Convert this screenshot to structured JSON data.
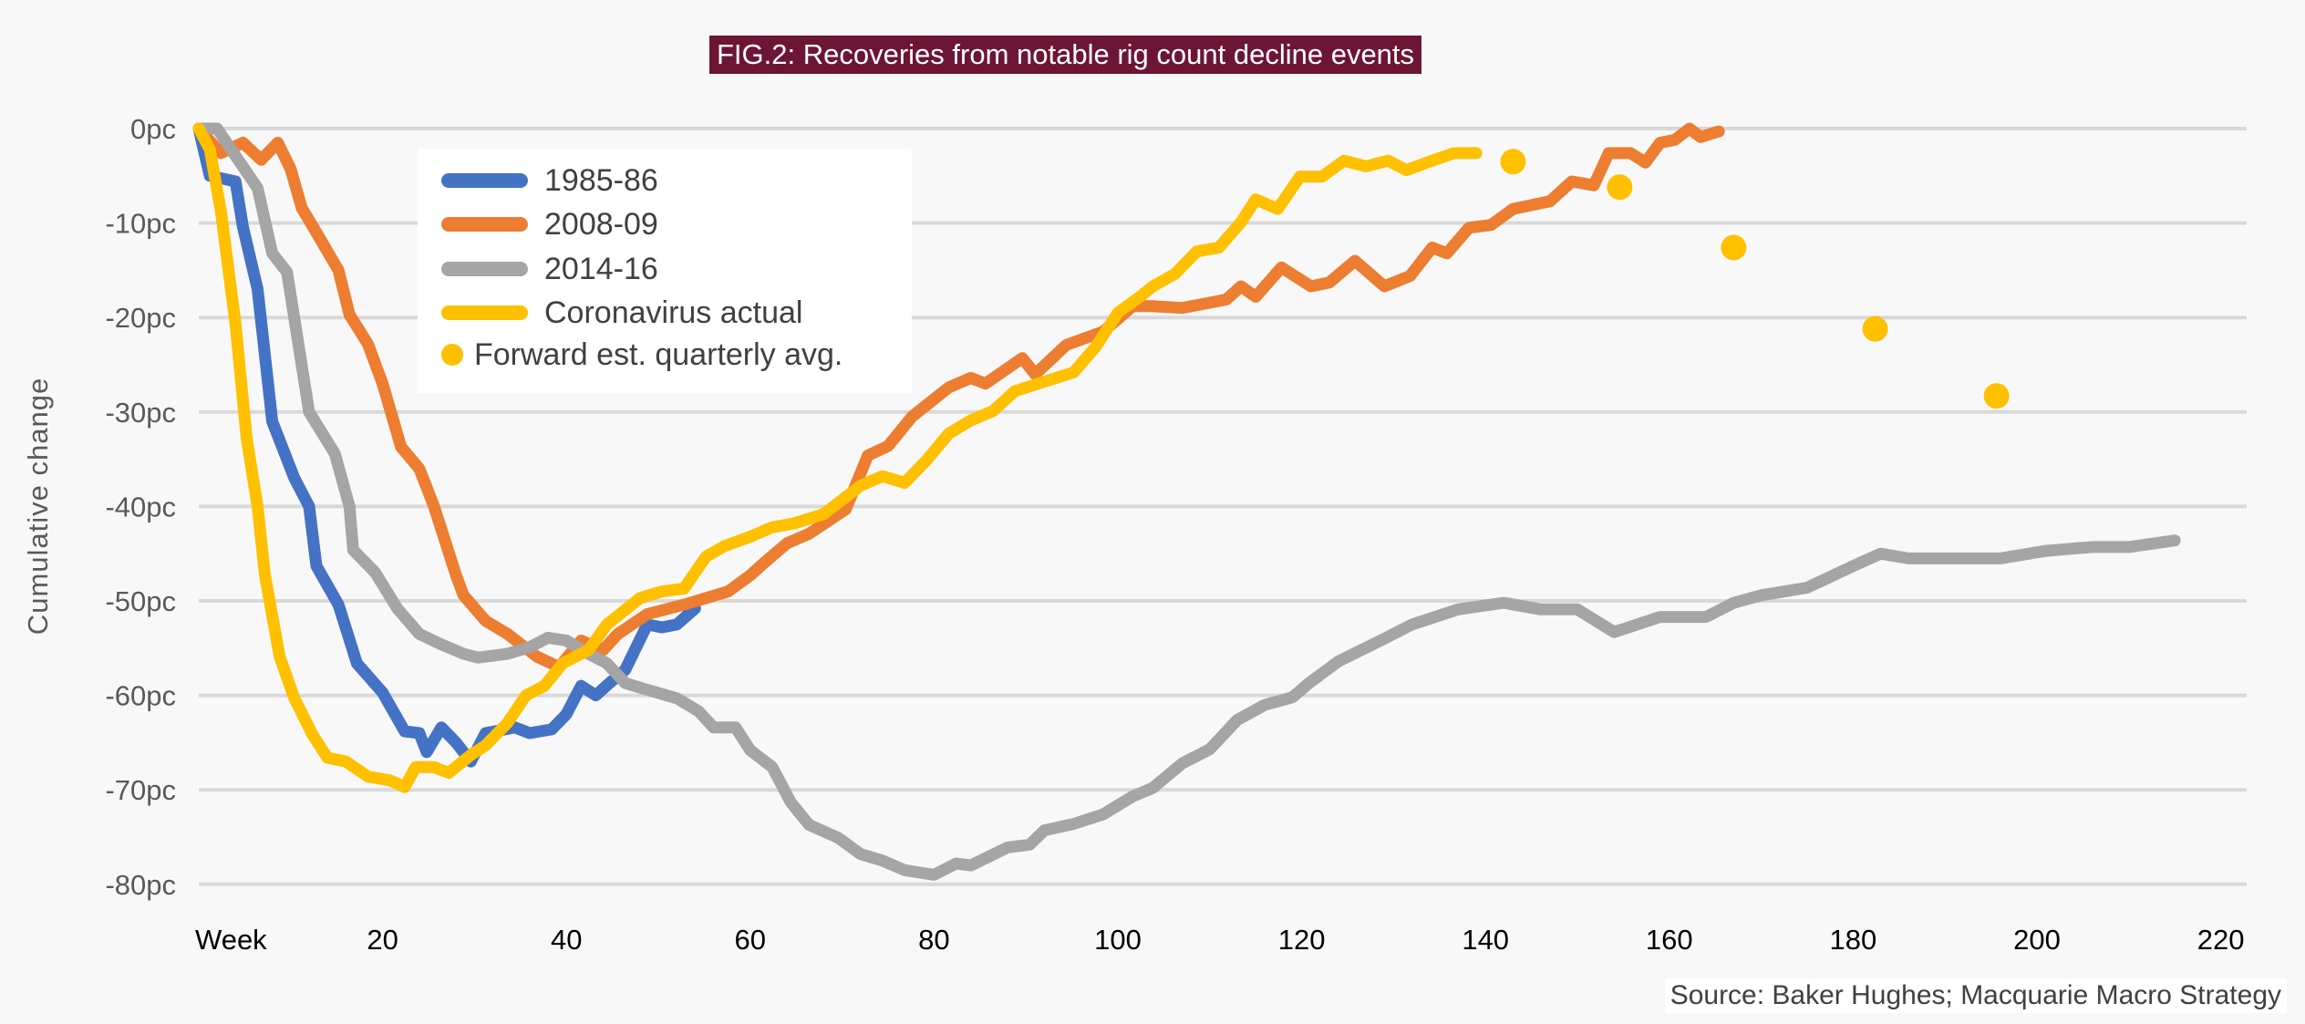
{
  "chart_data": {
    "type": "line",
    "title": "FIG.2: Recoveries from notable rig count decline events",
    "xlabel": "",
    "ylabel": "Cumulative change",
    "x_tick_labels": [
      "Week",
      "20",
      "40",
      "60",
      "80",
      "100",
      "120",
      "140",
      "160",
      "180",
      "200",
      "220"
    ],
    "x_ticks": [
      0,
      20,
      40,
      60,
      80,
      100,
      120,
      140,
      160,
      180,
      200,
      220
    ],
    "y_tick_labels": [
      "0pc",
      "-10pc",
      "-20pc",
      "-30pc",
      "-40pc",
      "-50pc",
      "-60pc",
      "-70pc",
      "-80pc"
    ],
    "y_ticks": [
      0,
      -10,
      -20,
      -30,
      -40,
      -50,
      -60,
      -70,
      -80
    ],
    "xlim": [
      0,
      220
    ],
    "ylim": [
      -80,
      0
    ],
    "grid": "horizontal",
    "legend": "top-left",
    "source": "Source: Baker Hughes; Macquarie Macro Strategy",
    "series": [
      {
        "name": "1985-86",
        "color": "#4472c4",
        "kind": "line",
        "points": [
          [
            0,
            0
          ],
          [
            1.2,
            -5
          ],
          [
            4,
            -5.6
          ],
          [
            4.8,
            -10.4
          ],
          [
            6.4,
            -17
          ],
          [
            8,
            -31
          ],
          [
            10.4,
            -37
          ],
          [
            12,
            -40
          ],
          [
            12.8,
            -46.3
          ],
          [
            15.2,
            -50.4
          ],
          [
            17.2,
            -56.6
          ],
          [
            20,
            -59.7
          ],
          [
            22.4,
            -63.8
          ],
          [
            24,
            -64
          ],
          [
            24.8,
            -66
          ],
          [
            26.4,
            -63.4
          ],
          [
            28,
            -65
          ],
          [
            29.6,
            -67
          ],
          [
            31.2,
            -64
          ],
          [
            34.4,
            -63.4
          ],
          [
            36,
            -64
          ],
          [
            38.4,
            -63.6
          ],
          [
            40,
            -62
          ],
          [
            41.6,
            -59
          ],
          [
            43.2,
            -60
          ],
          [
            44.8,
            -58.6
          ],
          [
            46.4,
            -57.3
          ],
          [
            48.8,
            -52.5
          ],
          [
            50.4,
            -52.8
          ],
          [
            52,
            -52.5
          ],
          [
            54,
            -50.8
          ]
        ]
      },
      {
        "name": "2008-09",
        "color": "#ed7d31",
        "kind": "line",
        "points": [
          [
            0,
            0
          ],
          [
            2.4,
            -2.6
          ],
          [
            4.8,
            -1.5
          ],
          [
            6.8,
            -3.3
          ],
          [
            8.6,
            -1.5
          ],
          [
            10,
            -4.3
          ],
          [
            11.2,
            -8.4
          ],
          [
            12.8,
            -11
          ],
          [
            15.2,
            -15
          ],
          [
            16.4,
            -19.7
          ],
          [
            18.4,
            -22.8
          ],
          [
            20,
            -27
          ],
          [
            22,
            -33.7
          ],
          [
            24,
            -36
          ],
          [
            25.6,
            -40
          ],
          [
            28,
            -47.3
          ],
          [
            28.8,
            -49.4
          ],
          [
            31.2,
            -52.1
          ],
          [
            33.6,
            -53.5
          ],
          [
            36.8,
            -55.9
          ],
          [
            39.2,
            -57
          ],
          [
            41.6,
            -54.2
          ],
          [
            44,
            -55.2
          ],
          [
            45.6,
            -53.5
          ],
          [
            48.8,
            -51.4
          ],
          [
            52.8,
            -50.4
          ],
          [
            57.6,
            -49
          ],
          [
            60,
            -47.3
          ],
          [
            61.6,
            -45.9
          ],
          [
            64,
            -43.9
          ],
          [
            66.4,
            -42.9
          ],
          [
            70.4,
            -40.3
          ],
          [
            72.8,
            -34.6
          ],
          [
            75,
            -33.6
          ],
          [
            77.6,
            -30.5
          ],
          [
            81.6,
            -27.4
          ],
          [
            84,
            -26.4
          ],
          [
            85.6,
            -27
          ],
          [
            89.6,
            -24.3
          ],
          [
            91,
            -26
          ],
          [
            94.4,
            -22.9
          ],
          [
            98.4,
            -21.5
          ],
          [
            101.6,
            -18.8
          ],
          [
            103.8,
            -18.8
          ],
          [
            107,
            -19
          ],
          [
            111.8,
            -18.1
          ],
          [
            113.4,
            -16.7
          ],
          [
            115,
            -17.8
          ],
          [
            117.8,
            -14.7
          ],
          [
            121,
            -16.7
          ],
          [
            123,
            -16.3
          ],
          [
            125.8,
            -14
          ],
          [
            129,
            -16.7
          ],
          [
            131.8,
            -15.6
          ],
          [
            134.2,
            -12.6
          ],
          [
            135.8,
            -13.2
          ],
          [
            138.2,
            -10.5
          ],
          [
            140.6,
            -10.2
          ],
          [
            143,
            -8.5
          ],
          [
            147,
            -7.7
          ],
          [
            149.4,
            -5.6
          ],
          [
            151.8,
            -6
          ],
          [
            153.4,
            -2.6
          ],
          [
            155.8,
            -2.6
          ],
          [
            157.4,
            -3.6
          ],
          [
            159,
            -1.5
          ],
          [
            160.6,
            -1.2
          ],
          [
            162.2,
            0
          ],
          [
            163.4,
            -0.9
          ],
          [
            165.4,
            -0.3
          ]
        ]
      },
      {
        "name": "2014-16",
        "color": "#a5a5a5",
        "kind": "line",
        "points": [
          [
            0,
            0
          ],
          [
            2,
            0
          ],
          [
            4,
            -2.9
          ],
          [
            6.4,
            -6.3
          ],
          [
            8,
            -13.2
          ],
          [
            9.6,
            -15.2
          ],
          [
            12,
            -30
          ],
          [
            14.8,
            -34.4
          ],
          [
            16.4,
            -40
          ],
          [
            16.8,
            -44.6
          ],
          [
            19.2,
            -47
          ],
          [
            21.6,
            -50.8
          ],
          [
            24,
            -53.5
          ],
          [
            26.4,
            -54.6
          ],
          [
            28.8,
            -55.6
          ],
          [
            30.4,
            -56
          ],
          [
            33.6,
            -55.6
          ],
          [
            36,
            -54.9
          ],
          [
            38,
            -53.9
          ],
          [
            40,
            -54.2
          ],
          [
            42.4,
            -55.6
          ],
          [
            44.4,
            -56.6
          ],
          [
            46.4,
            -58.7
          ],
          [
            48.4,
            -59.3
          ],
          [
            52,
            -60.3
          ],
          [
            54.4,
            -61.7
          ],
          [
            56,
            -63.4
          ],
          [
            58.4,
            -63.4
          ],
          [
            60,
            -65.8
          ],
          [
            62.4,
            -67.6
          ],
          [
            64.4,
            -71.3
          ],
          [
            66.4,
            -73.7
          ],
          [
            69.6,
            -75.1
          ],
          [
            72,
            -76.8
          ],
          [
            74.4,
            -77.5
          ],
          [
            76.8,
            -78.5
          ],
          [
            80,
            -79
          ],
          [
            82.4,
            -77.8
          ],
          [
            84,
            -78
          ],
          [
            88,
            -76.1
          ],
          [
            90.4,
            -75.8
          ],
          [
            92,
            -74.3
          ],
          [
            95.2,
            -73.6
          ],
          [
            98.4,
            -72.6
          ],
          [
            101.6,
            -70.7
          ],
          [
            103.8,
            -69.8
          ],
          [
            107,
            -67.2
          ],
          [
            110,
            -65.7
          ],
          [
            113,
            -62.6
          ],
          [
            116,
            -61
          ],
          [
            119,
            -60.2
          ],
          [
            120.8,
            -58.7
          ],
          [
            124,
            -56.4
          ],
          [
            129,
            -54
          ],
          [
            132,
            -52.5
          ],
          [
            137,
            -50.9
          ],
          [
            142,
            -50.2
          ],
          [
            146,
            -50.9
          ],
          [
            150,
            -50.9
          ],
          [
            154,
            -53.3
          ],
          [
            159,
            -51.7
          ],
          [
            164,
            -51.7
          ],
          [
            167,
            -50.2
          ],
          [
            170,
            -49.4
          ],
          [
            175,
            -48.6
          ],
          [
            180,
            -46.3
          ],
          [
            183,
            -45
          ],
          [
            186,
            -45.5
          ],
          [
            191,
            -45.5
          ],
          [
            196,
            -45.5
          ],
          [
            201,
            -44.7
          ],
          [
            206,
            -44.3
          ],
          [
            210,
            -44.3
          ],
          [
            215,
            -43.6
          ]
        ]
      },
      {
        "name": "Coronavirus actual",
        "color": "#ffc000",
        "kind": "line",
        "points": [
          [
            0,
            0
          ],
          [
            1.2,
            -2.2
          ],
          [
            2.4,
            -8.7
          ],
          [
            4,
            -20.7
          ],
          [
            5.2,
            -32.7
          ],
          [
            6.4,
            -40
          ],
          [
            7.2,
            -47.3
          ],
          [
            8.8,
            -55.9
          ],
          [
            10.4,
            -60.3
          ],
          [
            12.4,
            -64.2
          ],
          [
            14,
            -66.6
          ],
          [
            16,
            -67
          ],
          [
            18.4,
            -68.6
          ],
          [
            20.8,
            -69
          ],
          [
            22.4,
            -69.7
          ],
          [
            23.6,
            -67.6
          ],
          [
            25.6,
            -67.6
          ],
          [
            27.2,
            -68.2
          ],
          [
            29.6,
            -66.3
          ],
          [
            31.2,
            -65.3
          ],
          [
            33.6,
            -62.9
          ],
          [
            35.6,
            -60
          ],
          [
            37.6,
            -59
          ],
          [
            39.6,
            -56.6
          ],
          [
            42.4,
            -55.2
          ],
          [
            44.4,
            -52.5
          ],
          [
            48,
            -49.7
          ],
          [
            50.4,
            -49
          ],
          [
            52.8,
            -48.7
          ],
          [
            55.2,
            -45.3
          ],
          [
            57.2,
            -44.2
          ],
          [
            60,
            -43.2
          ],
          [
            62.4,
            -42.2
          ],
          [
            64.8,
            -41.8
          ],
          [
            68,
            -40.8
          ],
          [
            69.6,
            -39.6
          ],
          [
            72,
            -37.8
          ],
          [
            74.4,
            -36.8
          ],
          [
            76.8,
            -37.5
          ],
          [
            79.2,
            -35.1
          ],
          [
            81.6,
            -32.3
          ],
          [
            84,
            -30.9
          ],
          [
            86.4,
            -29.9
          ],
          [
            88.8,
            -27.8
          ],
          [
            92,
            -26.8
          ],
          [
            95.2,
            -25.8
          ],
          [
            97.6,
            -23.1
          ],
          [
            100,
            -19.5
          ],
          [
            102.4,
            -17.8
          ],
          [
            103.8,
            -16.7
          ],
          [
            106.2,
            -15.4
          ],
          [
            108.6,
            -13
          ],
          [
            111,
            -12.6
          ],
          [
            113.4,
            -9.9
          ],
          [
            115,
            -7.5
          ],
          [
            117.4,
            -8.5
          ],
          [
            119.8,
            -5.1
          ],
          [
            122.2,
            -5.1
          ],
          [
            124.6,
            -3.4
          ],
          [
            127,
            -4
          ],
          [
            129.4,
            -3.4
          ],
          [
            131.4,
            -4.4
          ],
          [
            134.2,
            -3.4
          ],
          [
            136.6,
            -2.6
          ],
          [
            139,
            -2.6
          ]
        ]
      },
      {
        "name": "Forward est. quarterly avg.",
        "color": "#ffc000",
        "kind": "marker",
        "points": [
          [
            143,
            -3.5
          ],
          [
            154.6,
            -6.2
          ],
          [
            167,
            -12.6
          ],
          [
            182.4,
            -21.2
          ],
          [
            195.6,
            -28.3
          ]
        ]
      }
    ]
  }
}
